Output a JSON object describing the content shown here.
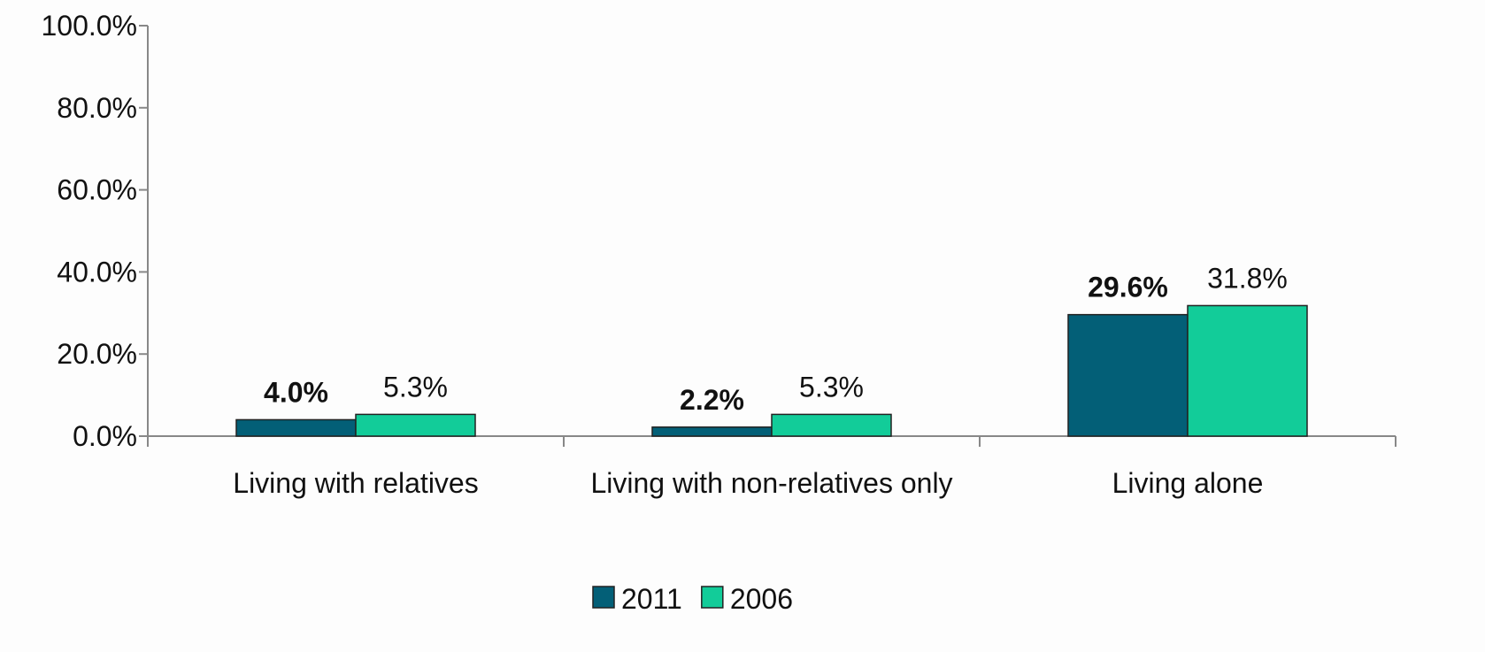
{
  "chart_data": {
    "type": "bar",
    "categories": [
      "Living with relatives",
      "Living with non-relatives only",
      "Living alone"
    ],
    "series": [
      {
        "name": "2011",
        "color": "#035f77",
        "values": [
          4.0,
          2.2,
          29.6
        ],
        "value_labels": [
          "4.0%",
          "2.2%",
          "29.6%"
        ]
      },
      {
        "name": "2006",
        "color": "#12cc99",
        "values": [
          5.3,
          5.3,
          31.8
        ],
        "value_labels": [
          "5.3%",
          "5.3%",
          "31.8%"
        ]
      }
    ],
    "ylim": [
      0,
      100
    ],
    "yticks": [
      {
        "value": 0,
        "label": "0.0%"
      },
      {
        "value": 20,
        "label": "20.0%"
      },
      {
        "value": 40,
        "label": "40.0%"
      },
      {
        "value": 60,
        "label": "60.0%"
      },
      {
        "value": 80,
        "label": "80.0%"
      },
      {
        "value": 100,
        "label": "100.0%"
      }
    ],
    "grid": false,
    "legend": "bottom"
  }
}
